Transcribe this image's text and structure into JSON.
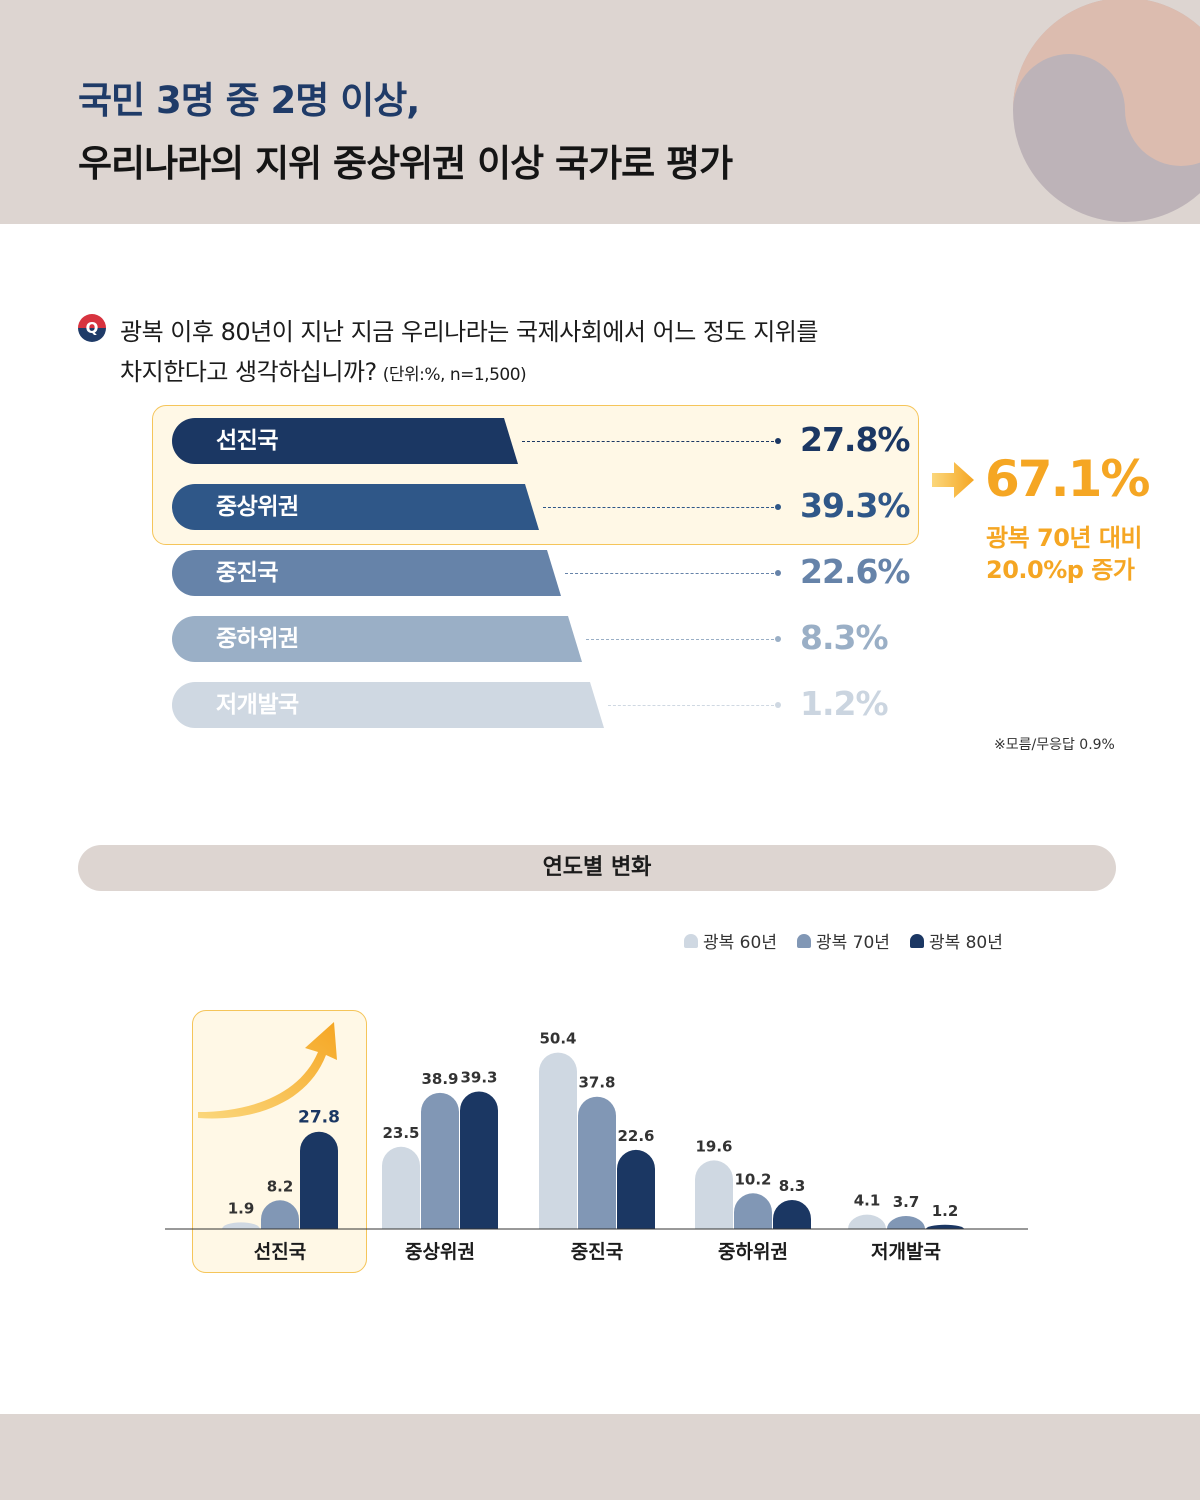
{
  "header": {
    "title_line1": "국민 3명 중 2명 이상,",
    "title_line2": "우리나라의 지위 중상위권 이상 국가로 평가"
  },
  "question": {
    "badge": "Q",
    "line1": "광복 이후 80년이 지난 지금 우리나라는 국제사회에서 어느 정도 지위를",
    "line2": "차지한다고 생각하십니까?",
    "unit": "(단위:%, n=1,500)"
  },
  "status_bars": [
    {
      "label": "선진국",
      "value_text": "27.8%",
      "value": 27.8,
      "color": "#1b3763",
      "text_color": "#1b3763"
    },
    {
      "label": "중상위권",
      "value_text": "39.3%",
      "value": 39.3,
      "color": "#2f5788",
      "text_color": "#2f5788"
    },
    {
      "label": "중진국",
      "value_text": "22.6%",
      "value": 22.6,
      "color": "#6683a9",
      "text_color": "#6683a9"
    },
    {
      "label": "중하위권",
      "value_text": "8.3%",
      "value": 8.3,
      "color": "#9aafc6",
      "text_color": "#9aafc6"
    },
    {
      "label": "저개발국",
      "value_text": "1.2%",
      "value": 1.2,
      "color": "#cfd8e2",
      "text_color": "#cbd5e0"
    }
  ],
  "summary": {
    "total": "67.1%",
    "note_line1": "광복 70년 대비",
    "note_line2": "20.0%p 증가"
  },
  "footnote": "※모름/무응답 0.9%",
  "yearly_section": {
    "title": "연도별 변화"
  },
  "colors": {
    "accent": "#f5a623",
    "navy": "#1b3763",
    "header_bg": "#ddd5d1"
  },
  "chart_data": {
    "type": "bar",
    "categories": [
      "선진국",
      "중상위권",
      "중진국",
      "중하위권",
      "저개발국"
    ],
    "series": [
      {
        "name": "광복 60년",
        "values": [
          1.9,
          23.5,
          50.4,
          19.6,
          4.1
        ],
        "color": "#cfd8e2"
      },
      {
        "name": "광복 70년",
        "values": [
          8.2,
          38.9,
          37.8,
          10.2,
          3.7
        ],
        "color": "#8197b5"
      },
      {
        "name": "광복 80년",
        "values": [
          27.8,
          39.3,
          22.6,
          8.3,
          1.2
        ],
        "color": "#1b3763"
      }
    ],
    "highlight_category": "선진국",
    "ylim": [
      0,
      55
    ],
    "legend_position": "top-right",
    "grid": false
  }
}
